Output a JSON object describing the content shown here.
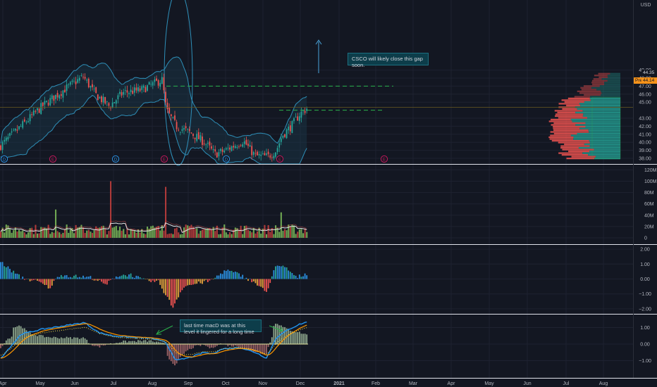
{
  "currency": "USD",
  "price_axis_labels": [
    "49.00",
    "48.00",
    "47.00",
    "46.00",
    "45.00",
    "43.00",
    "42.00",
    "41.00",
    "40.00",
    "39.00",
    "38.00"
  ],
  "price_axis_values": [
    49,
    48,
    47,
    46,
    45,
    43,
    42,
    41,
    40,
    39,
    38
  ],
  "last_price": "44.35",
  "prev_close_label": "Pre",
  "prev_close_price": "44.14",
  "volume_axis_labels": [
    "120M",
    "100M",
    "80M",
    "60M",
    "40M",
    "20M",
    "0"
  ],
  "volume_axis_values": [
    120,
    100,
    80,
    60,
    40,
    20,
    0
  ],
  "hist_axis_labels": [
    "2.00",
    "1.00",
    "0.00",
    "−1.00",
    "−2.00"
  ],
  "hist_axis_values": [
    2,
    1,
    0,
    -1,
    -2
  ],
  "macd_axis_labels": [
    "1.00",
    "0.00",
    "−1.00"
  ],
  "macd_axis_values": [
    1,
    0,
    -1
  ],
  "time_labels": [
    "Apr",
    "May",
    "Jun",
    "Jul",
    "Aug",
    "Sep",
    "Oct",
    "Nov",
    "Dec",
    "2021",
    "Feb",
    "Mar",
    "Apr",
    "May",
    "Jun",
    "Jul",
    "Aug"
  ],
  "event_markers": [
    "D",
    "E",
    "D",
    "E",
    "D",
    "E",
    "E"
  ],
  "annotations": {
    "gap_note": "CSCO will likely close this gap soon.",
    "macd_note": "last time macD was at this level it lingered for a long time"
  },
  "colors": {
    "up": "#26a69a",
    "down": "#ef5350",
    "vol_up": "#7fbf5a",
    "vol_down": "#c9403d",
    "bb_line": "#2e8fb8",
    "dash_green": "#2bb24c",
    "macd_line": "#2196f3",
    "signal_line": "#ff9800",
    "accent_orange": "#f7931a"
  },
  "chart_data": [
    {
      "type": "line",
      "name": "price-candles-bollinger",
      "x": [
        "Apr",
        "May",
        "Jun",
        "Jul",
        "Aug",
        "Sep",
        "Oct",
        "Nov",
        "Dec"
      ],
      "y": [
        39.5,
        44.5,
        47.0,
        45.5,
        47.0,
        42.0,
        39.5,
        38.5,
        44.35
      ],
      "ylim": [
        38,
        49
      ],
      "gap_upper": 47.0,
      "gap_lower": 44.0
    },
    {
      "type": "bar",
      "name": "volume",
      "ylim": [
        0,
        120
      ],
      "spikes_M": [
        50,
        100,
        90,
        40
      ]
    },
    {
      "type": "bar",
      "name": "histogram",
      "ylim": [
        -2,
        2
      ]
    },
    {
      "type": "line",
      "name": "macd",
      "ylim": [
        -1.2,
        1.5
      ]
    }
  ]
}
